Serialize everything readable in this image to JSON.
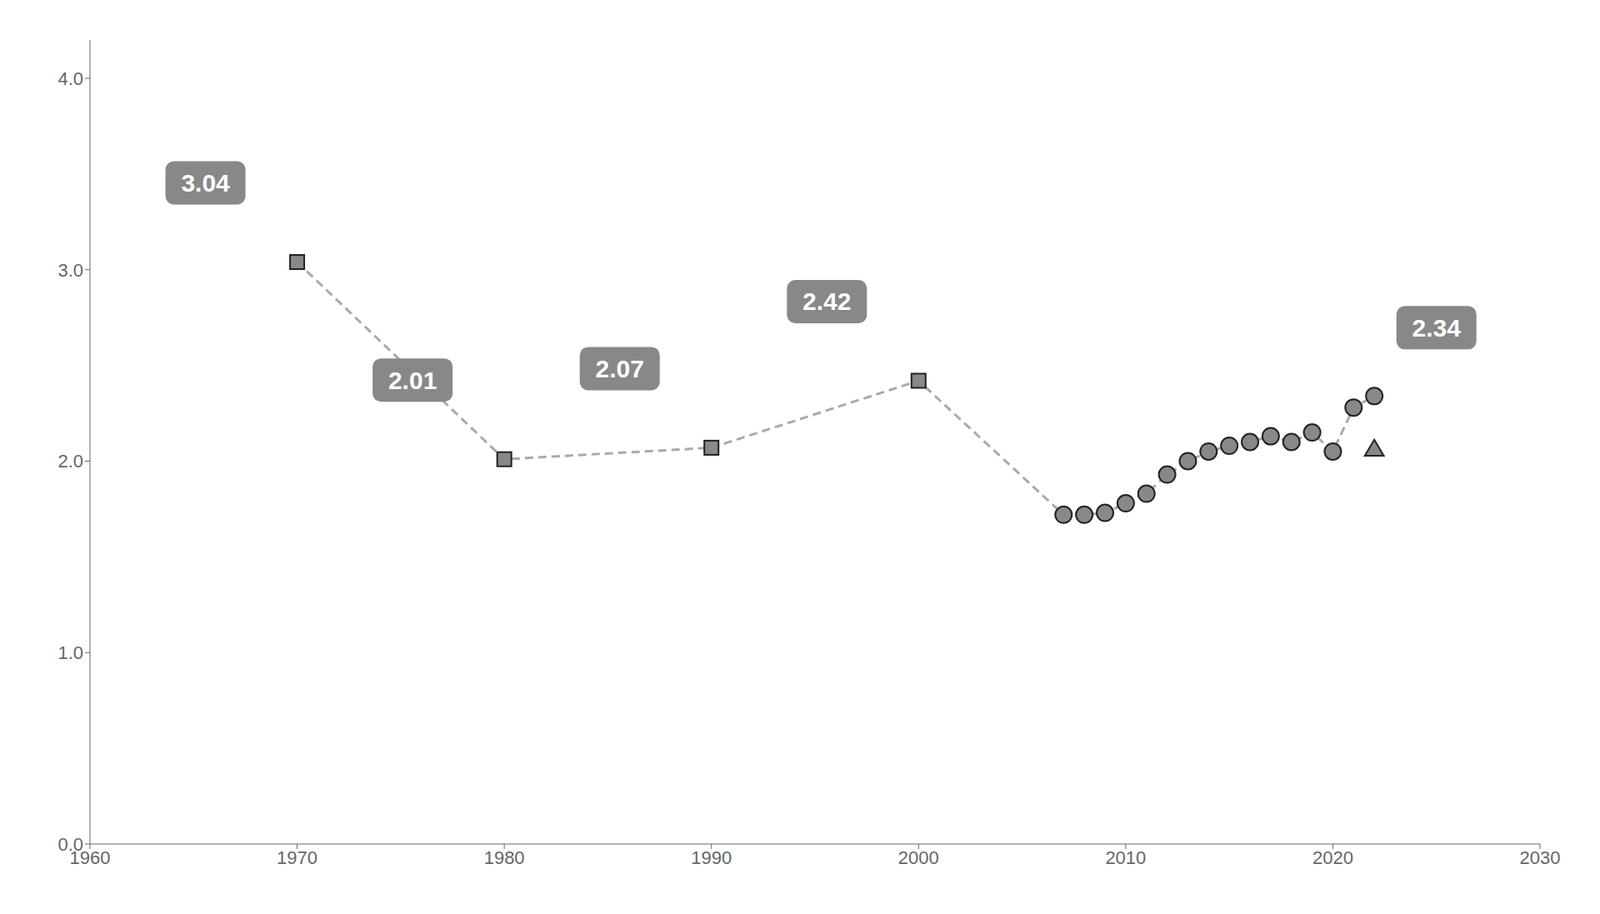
{
  "chart_data": {
    "type": "line",
    "xlim": [
      1960,
      2030
    ],
    "xticks": [
      1960,
      1970,
      1980,
      1990,
      2000,
      2010,
      2020,
      2030
    ],
    "ylim": [
      0.0,
      4.2
    ],
    "yticks": [
      {
        "value": 0.0,
        "label": "0.0"
      },
      {
        "value": 1.0,
        "label": "1.0"
      },
      {
        "value": 2.0,
        "label": "2.0"
      },
      {
        "value": 3.0,
        "label": "3.0"
      },
      {
        "value": 4.0,
        "label": "4.0"
      }
    ],
    "grid": false,
    "series": [
      {
        "type": "line",
        "line_style": "dashed",
        "color": "#aaaaaa",
        "x": [
          1970,
          1980,
          1990,
          2000,
          2007,
          2008,
          2009,
          2010,
          2011,
          2012,
          2013,
          2014,
          2015,
          2016,
          2017,
          2018,
          2019,
          2020,
          2021,
          2022
        ],
        "values": [
          3.04,
          2.01,
          2.07,
          2.42,
          1.72,
          1.72,
          1.73,
          1.78,
          1.83,
          1.93,
          2.0,
          2.05,
          2.08,
          2.1,
          2.13,
          2.1,
          2.15,
          2.05,
          2.28,
          2.34
        ]
      },
      {
        "type": "scatter",
        "marker": "square",
        "color": "#888888",
        "x": [
          1970,
          1980,
          1990,
          2000
        ],
        "values": [
          3.04,
          2.01,
          2.07,
          2.42
        ]
      },
      {
        "type": "scatter",
        "marker": "circle",
        "color": "#888888",
        "x": [
          2007,
          2008,
          2009,
          2010,
          2011,
          2012,
          2013,
          2014,
          2015,
          2016,
          2017,
          2018,
          2019,
          2020,
          2021,
          2022
        ],
        "values": [
          1.72,
          1.72,
          1.73,
          1.78,
          1.83,
          1.93,
          2.0,
          2.05,
          2.08,
          2.1,
          2.13,
          2.1,
          2.15,
          2.05,
          2.28,
          2.34
        ]
      },
      {
        "type": "scatter",
        "marker": "triangle",
        "color": "#888888",
        "x": [
          2022
        ],
        "values": [
          2.06
        ]
      }
    ],
    "annotations": [
      {
        "text": "3.04",
        "x": 1970,
        "y": 3.04,
        "color": "#888888"
      },
      {
        "text": "2.01",
        "x": 1980,
        "y": 2.01,
        "color": "#888888"
      },
      {
        "text": "2.07",
        "x": 1990,
        "y": 2.07,
        "color": "#888888"
      },
      {
        "text": "2.42",
        "x": 2000,
        "y": 2.42,
        "color": "#888888"
      },
      {
        "text": "2.34",
        "x": 2025,
        "y": 2.34,
        "color": "#888888"
      }
    ]
  }
}
